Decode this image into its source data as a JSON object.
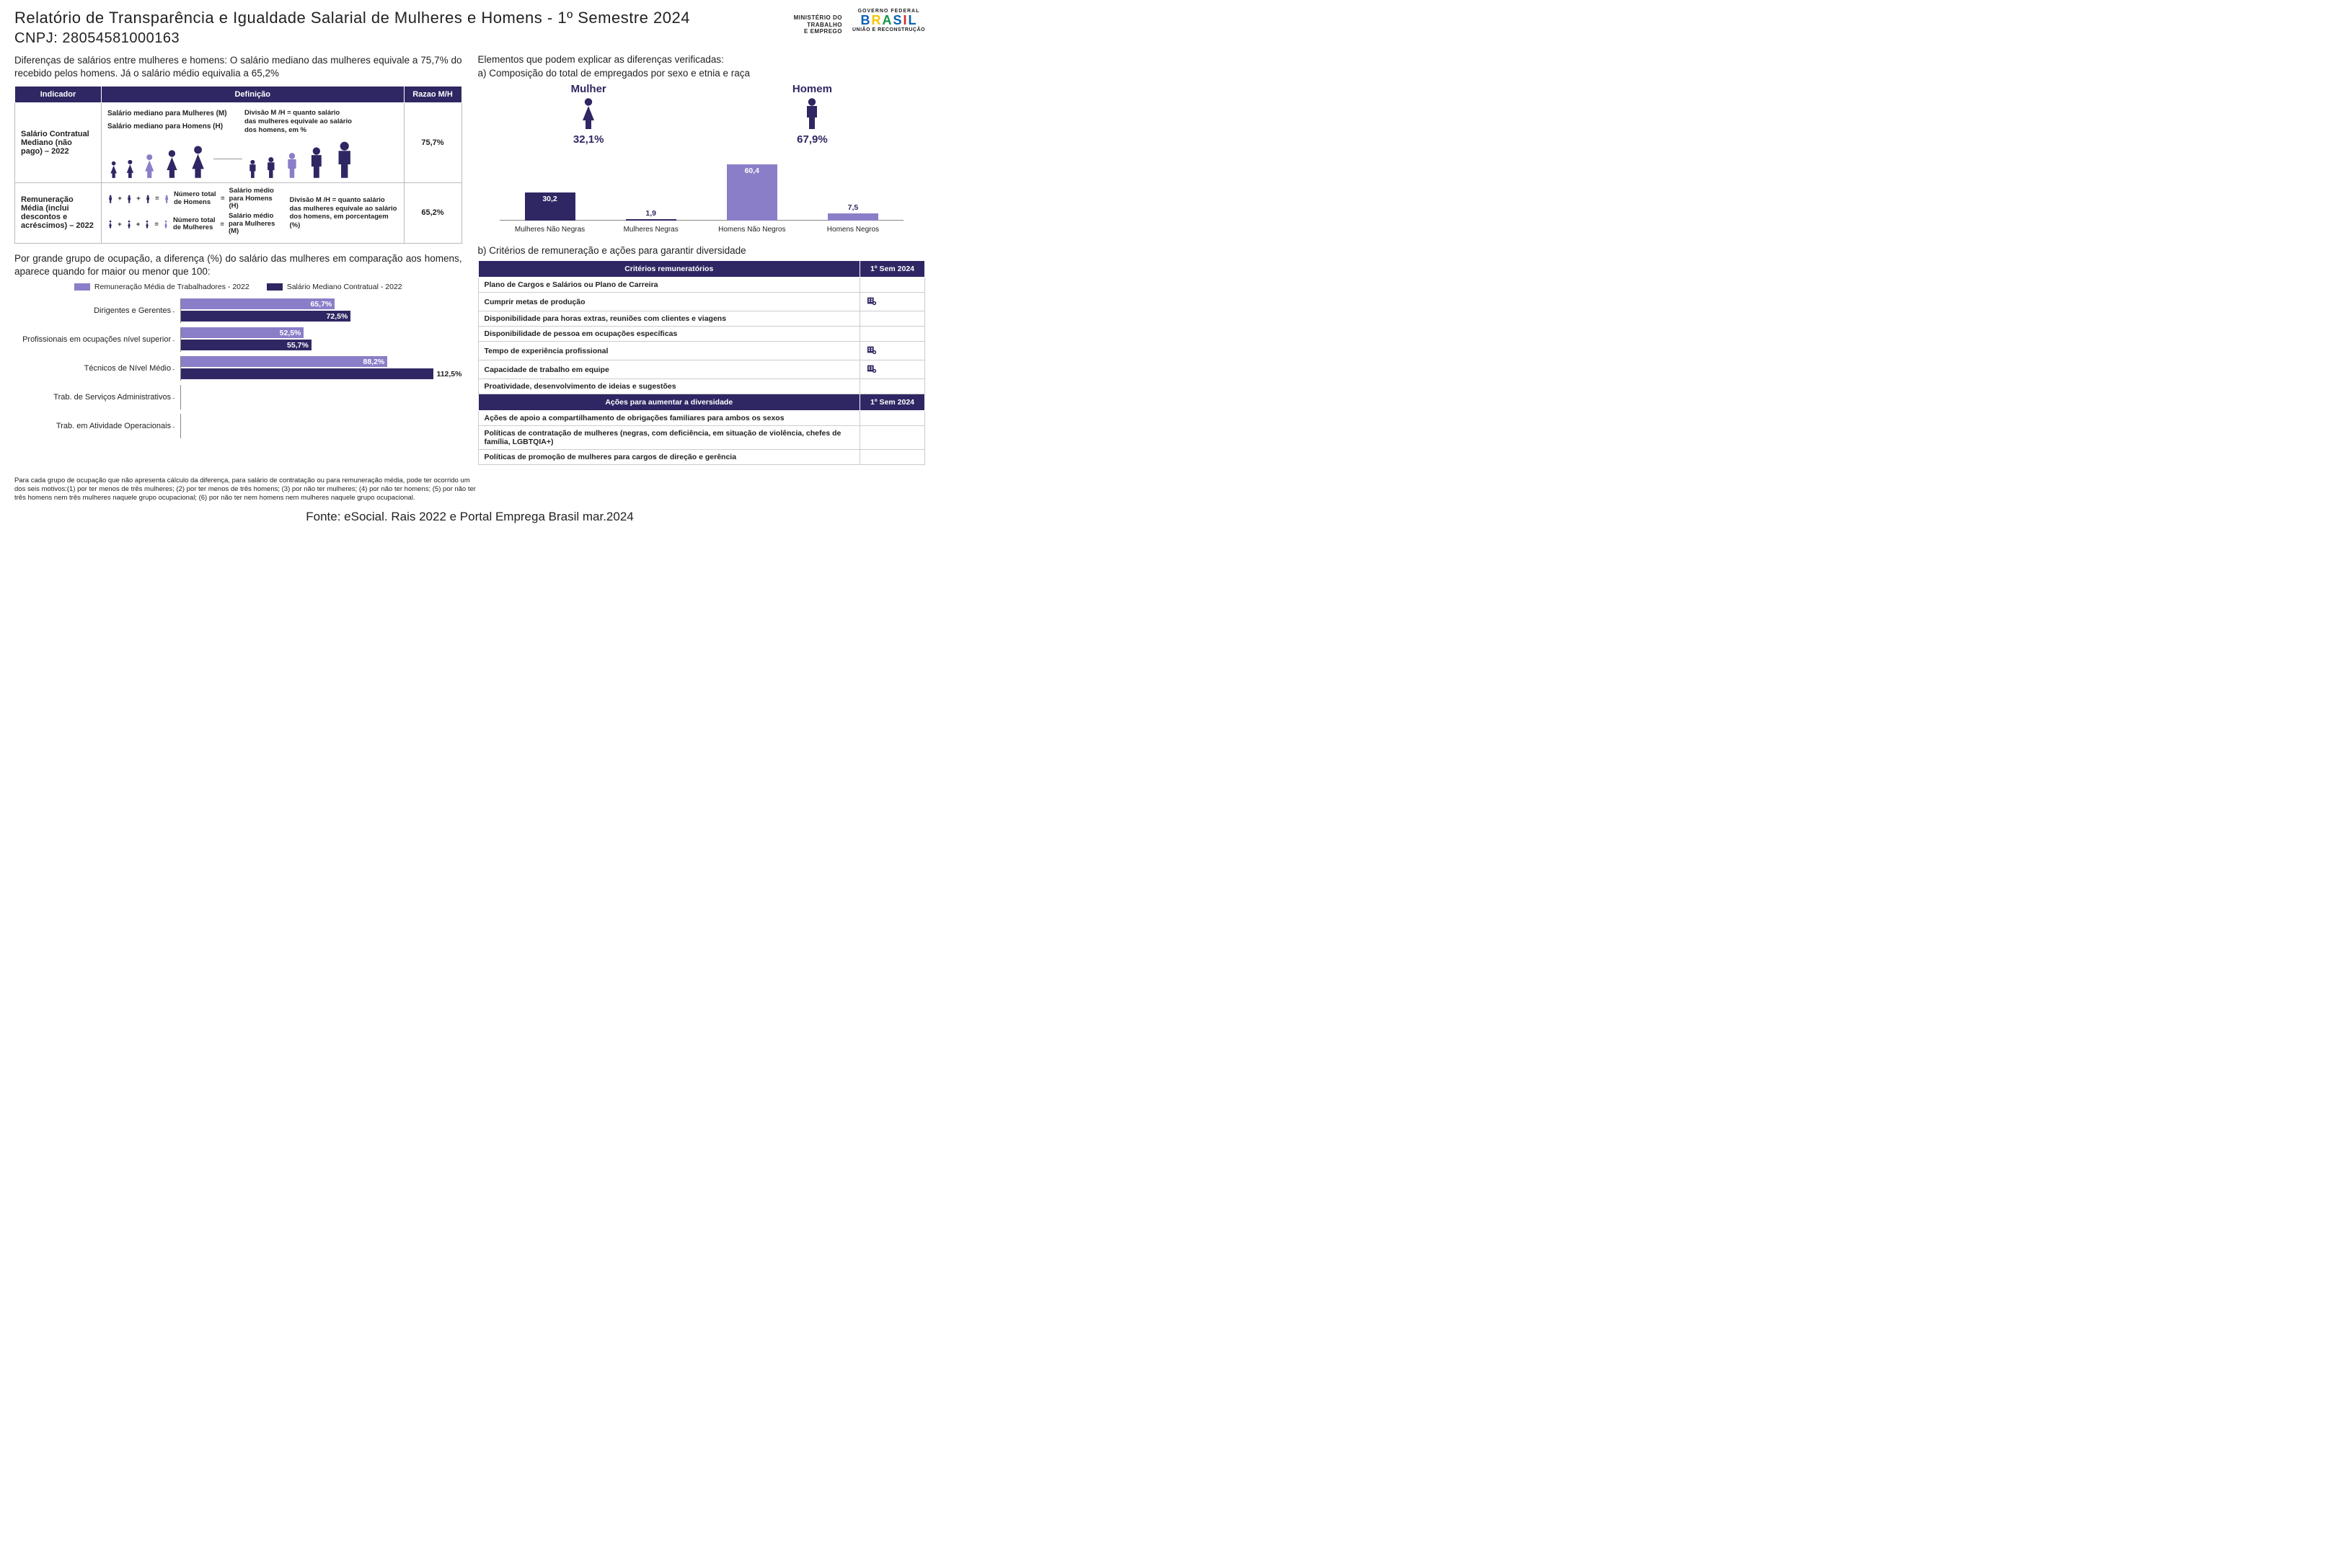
{
  "colors": {
    "deep": "#2f2763",
    "light": "#8b7ec8",
    "text": "#222222",
    "bg": "#ffffff",
    "grid": "#cccccc"
  },
  "header": {
    "title": "Relatório de Transparência e Igualdade Salarial de Mulheres e Homens - 1º Semestre 2024",
    "cnpj_label": "CNPJ: 28054581000163",
    "mte_l1": "MINISTÉRIO DO",
    "mte_l2": "TRABALHO",
    "mte_l3": "E EMPREGO",
    "gov_top": "GOVERNO FEDERAL",
    "gov_word": "BRASIL",
    "gov_colors": [
      "#0b63b0",
      "#f7c600",
      "#109648",
      "#0b63b0",
      "#d62828",
      "#0b63b0"
    ],
    "gov_sub": "UNIÃO E RECONSTRUÇÃO"
  },
  "left": {
    "lead": "Diferenças de salários entre mulheres e homens: O salário mediano das mulheres equivale a 75,7% do recebido pelos homens. Já o salário médio equivalia a 65,2%",
    "th_indicador": "Indicador",
    "th_def": "Definição",
    "th_ratio": "Razao M/H",
    "rows": [
      {
        "indic": "Salário Contratual Mediano (não pago) – 2022",
        "lab1": "Salário mediano para Mulheres (M)",
        "lab2": "Salário mediano para Homens (H)",
        "divnote": "Divisão M /H = quanto salário das mulheres equivale ao salário dos homens, em %",
        "ratio": "75,7%"
      },
      {
        "indic": "Remuneração Média (inclui descontos e acréscimos) – 2022",
        "h_total": "Número total de Homens",
        "h_avg": "Salário médio para Homens (H)",
        "m_total": "Número total de Mulheres",
        "m_avg": "Salário médio para Mulheres (M)",
        "divnote": "Divisão M /H = quanto salário das mulheres equivale ao salário dos homens, em porcentagem (%)",
        "ratio": "65,2%"
      }
    ],
    "occ_lead": "Por grande grupo de ocupação, a diferença (%) do salário das mulheres em comparação aos homens, aparece quando for maior ou menor que 100:",
    "occ_chart": {
      "type": "bar",
      "legend": [
        {
          "label": "Remuneração Média de Trabalhadores - 2022",
          "color": "#8b7ec8"
        },
        {
          "label": "Salário Mediano Contratual - 2022",
          "color": "#2f2763"
        }
      ],
      "xmax": 120,
      "categories": [
        {
          "label": "Dirigentes e Gerentes",
          "v1": 65.7,
          "v2": 72.5,
          "s1": "65,7%",
          "s2": "72,5%"
        },
        {
          "label": "Profissionais em ocupações nível superior",
          "v1": 52.5,
          "v2": 55.7,
          "s1": "52,5%",
          "s2": "55,7%"
        },
        {
          "label": "Técnicos de Nível Médio",
          "v1": 88.2,
          "v2": 112.5,
          "s1": "88,2%",
          "s2": "112,5%"
        },
        {
          "label": "Trab. de Serviços Administrativos",
          "v1": null,
          "v2": null
        },
        {
          "label": "Trab. em Atividade Operacionais",
          "v1": null,
          "v2": null
        }
      ]
    },
    "footnote": "Para cada grupo de ocupação que não apresenta cálculo da diferença, para salário de contratação ou para remuneração média, pode ter ocorrido um dos seis motivos:(1) por ter menos de três mulheres; (2) por ter menos de três homens; (3) por não ter mulheres; (4) por não ter homens; (5) por não ter três homens nem três mulheres naquele grupo ocupacional; (6) por não ter nem homens nem mulheres naquele grupo ocupacional."
  },
  "right": {
    "lead": "Elementos que podem explicar as diferenças verificadas:",
    "a_title": "a) Composição do total de empregados por sexo e etnia e raça",
    "mulher": "Mulher",
    "homem": "Homem",
    "mulher_pct": "32,1%",
    "homem_pct": "67,9%",
    "ethn_chart": {
      "type": "bar",
      "ymax": 70,
      "bars": [
        {
          "label": "Mulheres Não Negras",
          "value": 30.2,
          "s": "30,2",
          "color": "#2f2763"
        },
        {
          "label": "Mulheres Negras",
          "value": 1.9,
          "s": "1,9",
          "color": "#2f2763"
        },
        {
          "label": "Homens Não Negros",
          "value": 60.4,
          "s": "60,4",
          "color": "#8b7ec8"
        },
        {
          "label": "Homens Negros",
          "value": 7.5,
          "s": "7,5",
          "color": "#8b7ec8"
        }
      ]
    },
    "b_title": "b) Critérios de remuneração e ações para garantir diversidade",
    "crit_header": "Critérios remuneratórios",
    "sem_header": "1º Sem 2024",
    "criteria": [
      {
        "label": "Plano de Cargos e Salários ou Plano de Carreira",
        "mark": false
      },
      {
        "label": "Cumprir metas de produção",
        "mark": true
      },
      {
        "label": "Disponibilidade para horas extras, reuniões com clientes e viagens",
        "mark": false
      },
      {
        "label": "Disponibilidade de pessoa em ocupações específicas",
        "mark": false
      },
      {
        "label": "Tempo de experiência profissional",
        "mark": true
      },
      {
        "label": "Capacidade de trabalho em equipe",
        "mark": true
      },
      {
        "label": "Proatividade, desenvolvimento de ideias e sugestões",
        "mark": false
      }
    ],
    "div_header": "Ações para aumentar a diversidade",
    "actions": [
      {
        "label": "Ações de apoio a compartilhamento de obrigações familiares para ambos os sexos"
      },
      {
        "label": "Políticas de contratação de mulheres (negras, com deficiência, em situação de violência, chefes de família, LGBTQIA+)"
      },
      {
        "label": "Políticas de promoção de mulheres para cargos de direção e gerência"
      }
    ]
  },
  "source": "Fonte: eSocial. Rais 2022 e Portal Emprega Brasil mar.2024"
}
